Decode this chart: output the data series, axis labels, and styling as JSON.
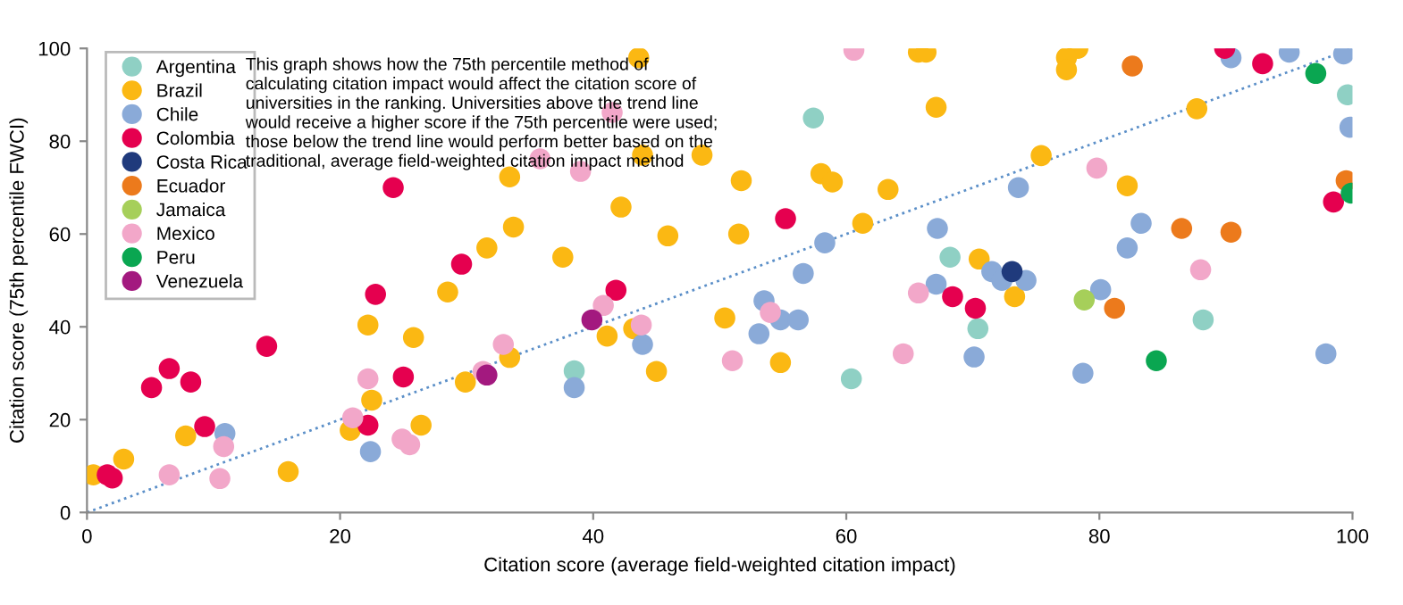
{
  "chart_data": {
    "type": "scatter",
    "xlabel": "Citation score (average field-weighted citation impact)",
    "ylabel": "Citation score (75th percentile FWCI)",
    "annotations": [
      "This graph shows how the 75th percentile method of calculating citation impact would affect the citation score of universities in the ranking. Universities above the trend line would receive a higher score if the 75th percentile were used; those below the trend line would perform better based on the traditional, average field-weighted citation impact method"
    ],
    "xlim": [
      0,
      100
    ],
    "ylim": [
      0,
      100
    ],
    "xticks": [
      0,
      20,
      40,
      60,
      80,
      100
    ],
    "yticks": [
      0,
      20,
      40,
      60,
      80,
      100
    ],
    "grid": false,
    "legend": "top left",
    "marker": "circle",
    "series": [
      {
        "name": "Argentina",
        "color": "#8fd0c4",
        "x": [
          57.4,
          99.6,
          70.4,
          88.2,
          60.4,
          38.5,
          68.2
        ],
        "values": [
          85,
          90,
          39.6,
          41.5,
          28.8,
          30.5,
          55
        ]
      },
      {
        "name": "Brazil",
        "color": "#fbb813",
        "x": [
          43.6,
          33.4,
          43.9,
          48.6,
          42.2,
          33.7,
          45.9,
          31.6,
          37.6,
          28.5,
          65.7,
          66.3,
          78.3,
          77.4,
          77.4,
          67.1,
          87.7,
          51.7,
          58.0,
          58.9,
          63.3,
          75.4,
          82.2,
          51.5,
          61.3,
          70.5,
          73.3,
          50.4,
          54.8,
          0.5,
          2.9,
          7.8,
          15.9,
          20.8,
          22.2,
          22.5,
          25.8,
          26.4,
          29.9,
          33.4,
          41.1,
          43.2,
          45.0
        ],
        "values": [
          98,
          72.3,
          77,
          77,
          65.8,
          61.5,
          59.6,
          57,
          55,
          47.5,
          99.2,
          99.2,
          100,
          98,
          95.4,
          87.3,
          87,
          71.5,
          73,
          71.2,
          69.6,
          76.9,
          70.4,
          60,
          62.3,
          54.6,
          46.5,
          41.9,
          32.3,
          8.1,
          11.5,
          16.5,
          8.8,
          17.7,
          40.4,
          24.2,
          37.7,
          18.8,
          28.1,
          33.4,
          38,
          39.6,
          30.4
        ]
      },
      {
        "name": "Chile",
        "color": "#8aaad8",
        "x": [
          90.4,
          95,
          99.3,
          99.8,
          73.6,
          67.2,
          58.3,
          56.6,
          53.5,
          83.3,
          82.2,
          71.5,
          72.3,
          74.2,
          67.1,
          80.1,
          53.1,
          54.8,
          56.2,
          70.1,
          78.7,
          97.9,
          10.9,
          22.4,
          38.5,
          43.9
        ],
        "values": [
          98,
          99.2,
          98.8,
          83,
          70,
          61.2,
          58.1,
          51.5,
          45.6,
          62.3,
          57,
          51.9,
          50,
          50,
          49.2,
          48,
          38.5,
          41.5,
          41.5,
          33.5,
          30,
          34.2,
          17,
          13.1,
          26.9,
          36.2
        ]
      },
      {
        "name": "Colombia",
        "color": "#e5004f",
        "x": [
          24.2,
          29.6,
          22.8,
          41.8,
          55.2,
          89.9,
          92.9,
          98.5,
          68.4,
          70.2,
          1.6,
          2.0,
          5.1,
          6.5,
          8.2,
          9.3,
          14.2,
          22.2,
          25.0
        ],
        "values": [
          70,
          53.5,
          47,
          47.9,
          63.3,
          100,
          96.7,
          66.9,
          46.5,
          44,
          8.1,
          7.4,
          26.9,
          31,
          28.1,
          18.5,
          35.8,
          18.8,
          29.2
        ]
      },
      {
        "name": "Costa Rica",
        "color": "#1f3a7c",
        "x": [
          73.1
        ],
        "values": [
          51.9
        ]
      },
      {
        "name": "Ecuador",
        "color": "#ec7a1c",
        "x": [
          82.6,
          99.5,
          86.5,
          90.4,
          81.2
        ],
        "values": [
          96.2,
          71.5,
          61.2,
          60.4,
          44
        ]
      },
      {
        "name": "Jamaica",
        "color": "#a6cf5a",
        "x": [
          78.8
        ],
        "values": [
          45.8
        ]
      },
      {
        "name": "Mexico",
        "color": "#f2a7c9",
        "x": [
          41.5,
          35.8,
          39,
          60.6,
          79.8,
          88.0,
          65.7,
          54.0,
          51.0,
          64.5,
          6.5,
          10.5,
          10.8,
          21.0,
          22.2,
          24.9,
          25.5,
          31.3,
          32.9,
          40.8,
          43.8
        ],
        "values": [
          86.2,
          76.2,
          73.5,
          99.6,
          74.2,
          52.3,
          47.3,
          43.1,
          32.7,
          34.2,
          8.1,
          7.3,
          14.2,
          20.4,
          28.8,
          15.8,
          14.6,
          30.4,
          36.2,
          44.6,
          40.4
        ]
      },
      {
        "name": "Peru",
        "color": "#0aa651",
        "x": [
          97.1,
          99.9,
          84.5
        ],
        "values": [
          94.6,
          68.8,
          32.7
        ]
      },
      {
        "name": "Venezuela",
        "color": "#a3197f",
        "x": [
          31.6,
          39.9
        ],
        "values": [
          29.6,
          41.5
        ]
      },
      {
        "type": "line",
        "color": "#5b8fc8",
        "line_style": "dotted",
        "marker": "none",
        "x": [
          0,
          100
        ],
        "values": [
          0,
          100
        ]
      }
    ]
  }
}
